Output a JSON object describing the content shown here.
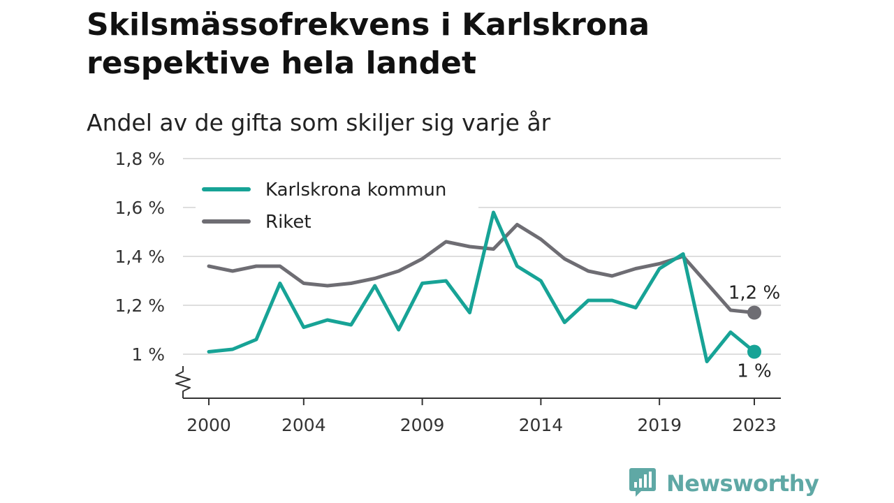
{
  "header": {
    "title": "Skilsmässofrekvens i Karlskrona respektive hela landet",
    "subtitle": "Andel av de gifta som skiljer sig varje år"
  },
  "brand": {
    "name": "Newsworthy",
    "icon": "newsworthy-logo-icon",
    "color": "#5fa8a5"
  },
  "chart_data": {
    "type": "line",
    "title": "Skilsmässofrekvens i Karlskrona respektive hela landet",
    "subtitle": "Andel av de gifta som skiljer sig varje år",
    "xlabel": "",
    "ylabel": "",
    "x": [
      2000,
      2001,
      2002,
      2003,
      2004,
      2005,
      2006,
      2007,
      2008,
      2009,
      2010,
      2011,
      2012,
      2013,
      2014,
      2015,
      2016,
      2017,
      2018,
      2019,
      2020,
      2021,
      2022,
      2023
    ],
    "x_ticks": [
      2000,
      2004,
      2009,
      2014,
      2019,
      2023
    ],
    "x_tick_labels": [
      "2000",
      "2004",
      "2009",
      "2014",
      "2019",
      "2023"
    ],
    "y_ticks": [
      1.0,
      1.2,
      1.4,
      1.6,
      1.8
    ],
    "y_tick_labels": [
      "1 %",
      "1,2 %",
      "1,4 %",
      "1,6 %",
      "1,8 %"
    ],
    "ylim": [
      0.8,
      1.8
    ],
    "grid": "horizontal",
    "axis_break": true,
    "legend_position": "top-left",
    "series": [
      {
        "name": "Karlskrona kommun",
        "color": "#17a396",
        "values": [
          1.01,
          1.02,
          1.06,
          1.29,
          1.11,
          1.14,
          1.12,
          1.28,
          1.1,
          1.29,
          1.3,
          1.17,
          1.58,
          1.36,
          1.3,
          1.13,
          1.22,
          1.22,
          1.19,
          1.35,
          1.41,
          0.97,
          1.09,
          1.01
        ],
        "end_label": "1 %"
      },
      {
        "name": "Riket",
        "color": "#6e6d73",
        "values": [
          1.36,
          1.34,
          1.36,
          1.36,
          1.29,
          1.28,
          1.29,
          1.31,
          1.34,
          1.39,
          1.46,
          1.44,
          1.43,
          1.53,
          1.47,
          1.39,
          1.34,
          1.32,
          1.35,
          1.37,
          1.4,
          1.29,
          1.18,
          1.17
        ],
        "end_label": "1,2 %"
      }
    ]
  }
}
